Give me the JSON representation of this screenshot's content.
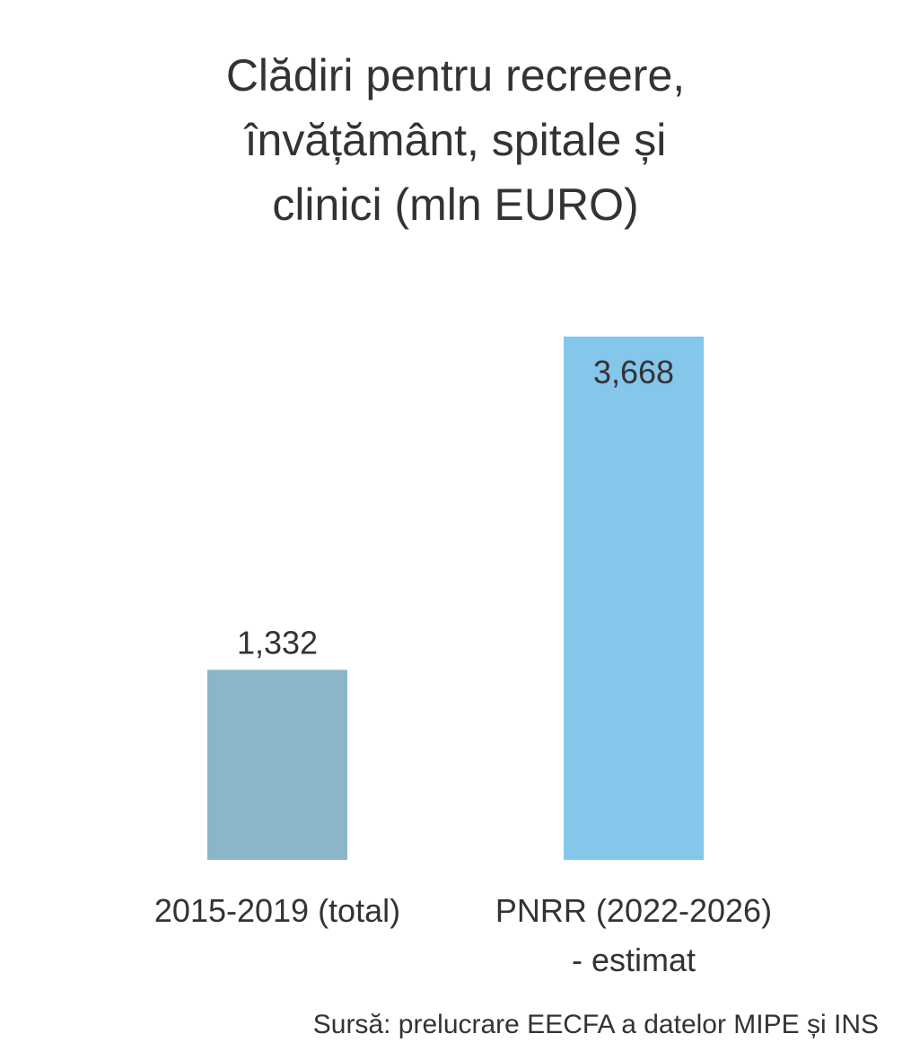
{
  "chart_data": {
    "type": "bar",
    "title_lines": [
      "Clădiri pentru recreere,",
      "învățământ, spitale și",
      "clinici (mln EURO)"
    ],
    "categories": [
      [
        "2015-2019 (total)"
      ],
      [
        "PNRR (2022-2026)",
        "- estimat"
      ]
    ],
    "values": [
      1332,
      3668
    ],
    "value_labels": [
      "1,332",
      "3,668"
    ],
    "value_label_positions": [
      "outside",
      "inside"
    ],
    "colors": [
      "#8AB6C8",
      "#85C6EB"
    ],
    "ylim": [
      0,
      3668
    ],
    "grid": false,
    "xlabel": "",
    "ylabel": ""
  },
  "source": "Sursă: prelucrare EECFA a datelor MIPE și INS"
}
